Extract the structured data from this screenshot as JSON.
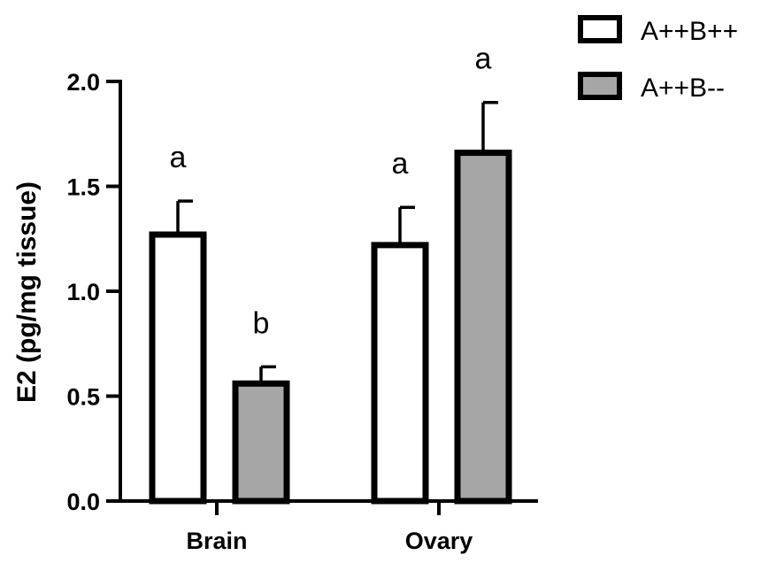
{
  "chart_data": {
    "type": "bar",
    "title": "",
    "xlabel": "",
    "ylabel": "E2 (pg/mg tissue)",
    "ylim": [
      0,
      2.0
    ],
    "yticks": [
      "0.0",
      "0.5",
      "1.0",
      "1.5",
      "2.0"
    ],
    "categories": [
      "Brain",
      "Ovary"
    ],
    "series": [
      {
        "name": "A++B++",
        "color": "#ffffff",
        "values": [
          1.27,
          1.22
        ],
        "errors": [
          0.16,
          0.18
        ],
        "labels": [
          "a",
          "a"
        ]
      },
      {
        "name": "A++B--",
        "color": "#a6a6a6",
        "values": [
          0.56,
          1.66
        ],
        "errors": [
          0.08,
          0.24
        ],
        "labels": [
          "b",
          "a"
        ]
      }
    ],
    "legend": "top-right",
    "grid": false
  }
}
